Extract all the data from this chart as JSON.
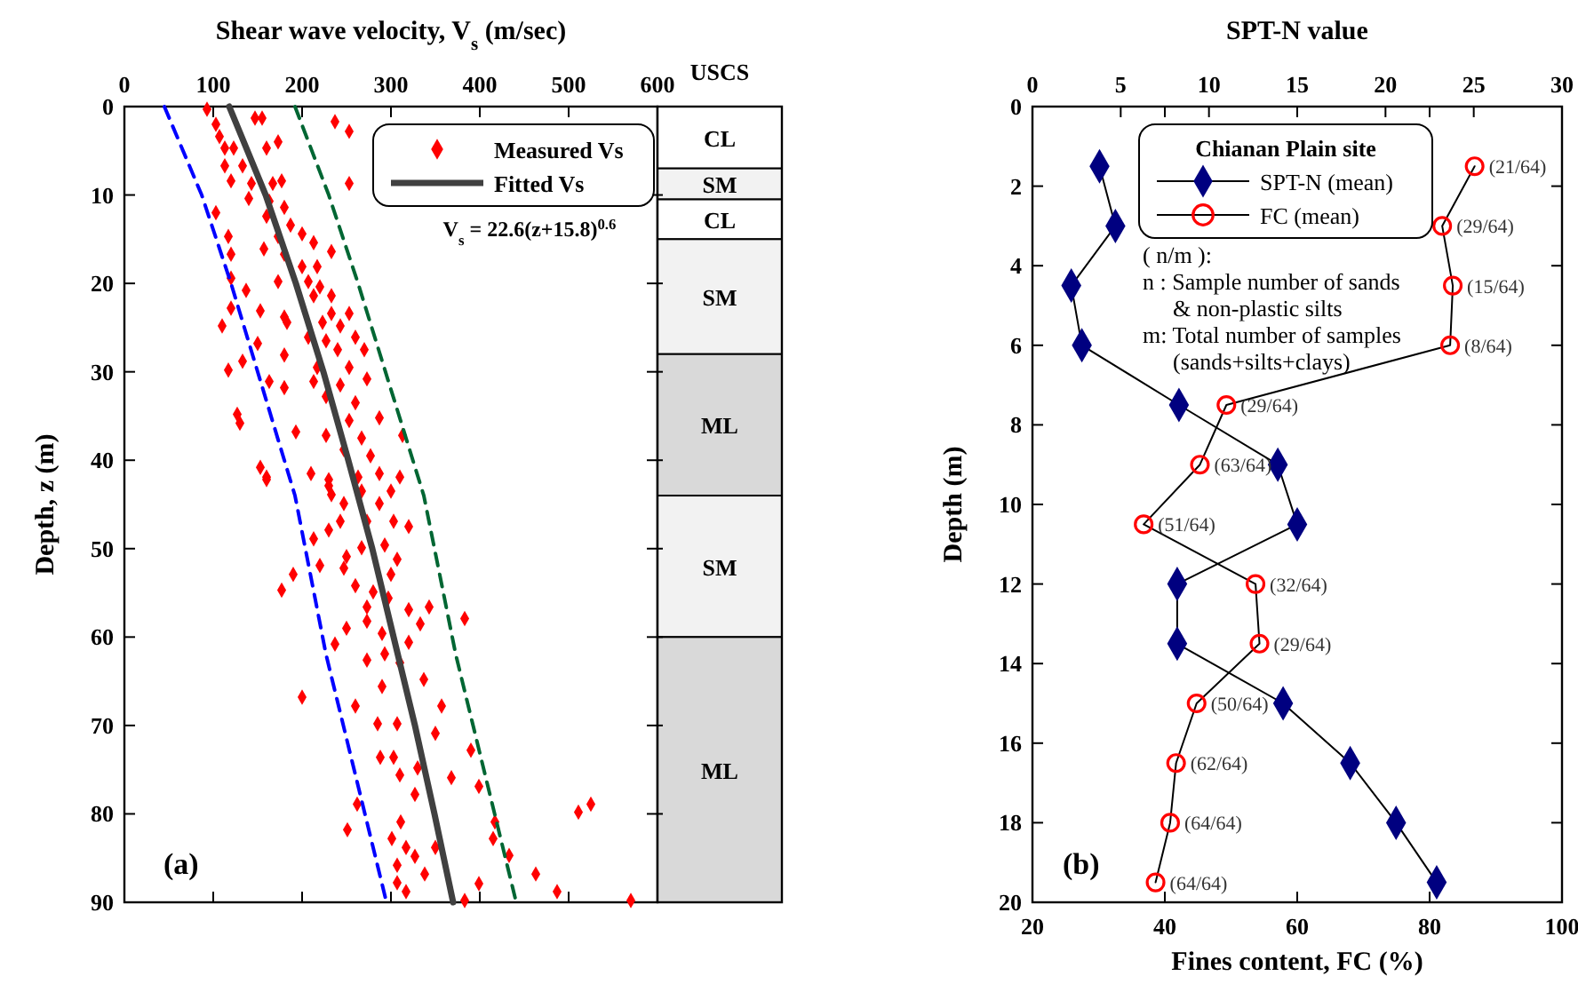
{
  "chart_data": [
    {
      "type": "scatter",
      "xlabel": "Shear wave velocity, V$_{s}$ (m/sec)",
      "ylabel": "Depth, z (m)",
      "xlim": [
        0,
        600
      ],
      "xticks": [
        0,
        100,
        200,
        300,
        400,
        500,
        600
      ],
      "ylim": [
        90,
        0
      ],
      "yticks": [
        0,
        10,
        20,
        30,
        40,
        50,
        60,
        70,
        80,
        90
      ],
      "legend": "top right",
      "marker": "diamond",
      "series": [
        {
          "name": "Measured Vs",
          "type": "scatter",
          "color": "#ff0000",
          "x": [
            93,
            103,
            155,
            147,
            107,
            113,
            123,
            160,
            173,
            237,
            253,
            113,
            133,
            120,
            143,
            167,
            177,
            253,
            140,
            163,
            180,
            103,
            160,
            187,
            117,
            173,
            200,
            213,
            233,
            120,
            157,
            180,
            200,
            217,
            120,
            173,
            207,
            220,
            137,
            213,
            120,
            153,
            180,
            233,
            233,
            253,
            110,
            183,
            223,
            243,
            260,
            150,
            207,
            227,
            133,
            180,
            240,
            270,
            117,
            217,
            253,
            163,
            180,
            213,
            243,
            273,
            227,
            260,
            287,
            127,
            130,
            193,
            227,
            253,
            267,
            313,
            247,
            277,
            153,
            160,
            210,
            230,
            263,
            287,
            310,
            233,
            267,
            160,
            230,
            300,
            247,
            287,
            273,
            303,
            243,
            230,
            320,
            213,
            267,
            293,
            250,
            307,
            190,
            220,
            247,
            300,
            177,
            260,
            280,
            297,
            273,
            320,
            343,
            383,
            273,
            333,
            250,
            290,
            320,
            237,
            273,
            293,
            310,
            200,
            290,
            337,
            260,
            357,
            285,
            307,
            350,
            288,
            303,
            390,
            330,
            310,
            368,
            399,
            327,
            262,
            511,
            525,
            311,
            417,
            251,
            301,
            317,
            350,
            327,
            415,
            433,
            307,
            338,
            463,
            307,
            399,
            317,
            487,
            383,
            570
          ],
          "values": [
            0.3,
            2,
            1.3,
            1.3,
            3.4,
            4.7,
            4.7,
            4.7,
            4,
            1.7,
            2.8,
            6.7,
            6.7,
            8.4,
            8.7,
            8.7,
            8.4,
            8.7,
            10.4,
            10.7,
            11.4,
            12,
            12.4,
            13.4,
            14.7,
            14.7,
            14.4,
            15.4,
            16.4,
            16.7,
            16.1,
            16.7,
            18.1,
            18.1,
            19.4,
            19.8,
            19.8,
            20.4,
            20.8,
            21.4,
            22.8,
            23.1,
            23.8,
            21.4,
            23.4,
            23.4,
            24.8,
            24.4,
            24.4,
            24.8,
            26.1,
            26.8,
            26.1,
            26.5,
            28.8,
            28.1,
            27.5,
            27.5,
            29.8,
            29.5,
            29.5,
            31.1,
            31.8,
            31.1,
            31.5,
            30.8,
            32.8,
            33.5,
            35.2,
            34.8,
            35.8,
            36.8,
            37.2,
            35.5,
            37.5,
            37.2,
            38.8,
            39.5,
            40.8,
            41.9,
            41.5,
            42.2,
            41.9,
            41.5,
            41.9,
            43.9,
            43.5,
            42.2,
            42.9,
            43.5,
            44.9,
            44.9,
            46.9,
            46.9,
            46.9,
            47.9,
            47.5,
            48.9,
            49.9,
            49.6,
            50.9,
            51.2,
            52.9,
            51.9,
            52.2,
            52.9,
            54.7,
            54.2,
            54.9,
            55.6,
            56.6,
            56.9,
            56.6,
            57.9,
            58.2,
            58.5,
            59,
            59.6,
            60.6,
            60.8,
            62.6,
            61.9,
            62.9,
            66.8,
            65.6,
            64.8,
            67.8,
            67.8,
            69.8,
            69.8,
            70.9,
            73.6,
            73.6,
            72.8,
            74.8,
            75.6,
            75.9,
            76.9,
            77.8,
            78.9,
            79.8,
            78.9,
            80.9,
            80.9,
            81.8,
            82.8,
            83.8,
            83.8,
            84.8,
            82.8,
            84.7,
            85.8,
            86.8,
            86.8,
            87.8,
            87.9,
            88.8,
            88.8,
            89.8,
            89.8
          ]
        },
        {
          "type": "line",
          "marker": "none",
          "color": "#0000ff",
          "line_style": "dashed",
          "x": [
            45,
            87,
            120,
            192,
            227,
            295
          ],
          "values": [
            0,
            10,
            20,
            44,
            62,
            90
          ]
        },
        {
          "type": "line",
          "marker": "none",
          "color": "#006633",
          "line_style": "dashed",
          "x": [
            192,
            230,
            263,
            337,
            373,
            441
          ],
          "values": [
            0,
            10,
            20,
            44,
            62,
            90
          ]
        },
        {
          "name": "Fitted Vs",
          "type": "line",
          "marker": "none",
          "color": "#404040",
          "x": [
            118,
            159,
            193,
            224,
            252,
            279,
            303,
            327,
            349,
            370
          ],
          "values": [
            0,
            10,
            20,
            30,
            40,
            50,
            60,
            70,
            80,
            90
          ]
        }
      ],
      "annotations": [
        "V$_{s}$ = 22.6(z+15.8)$^{0.6}$",
        "(a)"
      ]
    },
    {
      "type": "bar",
      "stacked": true,
      "categories": [
        "USCS"
      ],
      "ylim": [
        90,
        0
      ],
      "yticks": [
        0,
        10,
        20,
        30,
        40,
        50,
        60,
        70,
        80,
        90
      ],
      "tick_labels": false,
      "series": [
        {
          "name": "CL",
          "color": "#ffffff",
          "values": [
            7
          ]
        },
        {
          "name": "SM",
          "color": "#f2f2f2",
          "values": [
            3.5
          ]
        },
        {
          "name": "CL",
          "color": "#ffffff",
          "values": [
            4.5
          ]
        },
        {
          "name": "SM",
          "color": "#f2f2f2",
          "values": [
            13
          ]
        },
        {
          "name": "ML",
          "color": "#d9d9d9",
          "values": [
            16
          ]
        },
        {
          "name": "SM",
          "color": "#f2f2f2",
          "values": [
            16
          ]
        },
        {
          "name": "ML",
          "color": "#d9d9d9",
          "values": [
            30
          ]
        }
      ]
    },
    {
      "type": "line",
      "xlabel": "Fines content, FC (%)",
      "x2label": "SPT-N value",
      "ylabel": "Depth (m)",
      "xlim": [
        20,
        100
      ],
      "xticks": [
        20,
        40,
        60,
        80,
        100
      ],
      "x2lim": [
        0,
        30
      ],
      "x2ticks": [
        0,
        5,
        10,
        15,
        20,
        25,
        30
      ],
      "ylim": [
        20,
        0
      ],
      "yticks": [
        0,
        2,
        4,
        6,
        8,
        10,
        12,
        14,
        16,
        18,
        20
      ],
      "legend": "top left",
      "legend_title": "Chianan Plain site",
      "series": [
        {
          "name": "SPT-N (mean)",
          "axis": "x2",
          "color": "#000080",
          "marker": "diamond",
          "x": [
            3.8,
            4.7,
            2.2,
            2.8,
            8.3,
            13.9,
            15.0,
            8.2,
            8.2,
            14.2,
            18.0,
            20.6,
            22.9
          ],
          "values": [
            1.5,
            3,
            4.5,
            6,
            7.5,
            9,
            10.5,
            12,
            13.5,
            15,
            16.5,
            18,
            19.5
          ]
        },
        {
          "name": "FC (mean)",
          "color": "#ff0000",
          "marker": "circle",
          "x": [
            86.8,
            81.9,
            83.5,
            83.1,
            49.3,
            45.3,
            36.8,
            53.7,
            54.3,
            44.8,
            41.7,
            40.8,
            38.6
          ],
          "values": [
            1.5,
            3,
            4.5,
            6,
            7.5,
            9,
            10.5,
            12,
            13.5,
            15,
            16.5,
            18,
            19.5
          ],
          "value_labels": [
            "(21/64)",
            "(29/64)",
            "(15/64)",
            "(8/64)",
            "(29/64)",
            "(63/64)",
            "(51/64)",
            "(32/64)",
            "(29/64)",
            "(50/64)",
            "(62/64)",
            "(64/64)",
            "(64/64)"
          ]
        }
      ],
      "annotations": [
        "( n/m ):",
        "n : Sample number of sands",
        "& non-plastic silts",
        "m: Total number of samples",
        "(sands+silts+clays)",
        "(b)"
      ]
    }
  ]
}
